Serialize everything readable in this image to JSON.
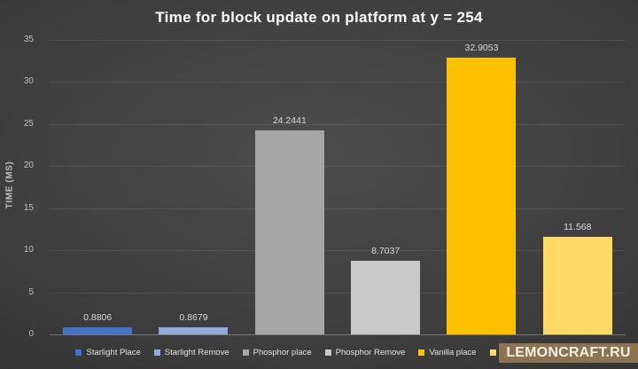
{
  "title": "Time for block update on platform at y = 254",
  "axis": {
    "ylabel": "TIME (MS)"
  },
  "watermark": {
    "text": "LEMONCRAFT.RU",
    "bg": "#8B7451",
    "fg": "#F5EFE0"
  },
  "chart_data": {
    "type": "bar",
    "title": "Time for block update on platform at y = 254",
    "xlabel": "",
    "ylabel": "TIME (MS)",
    "ylim": [
      0,
      35
    ],
    "yticks": [
      0,
      5,
      10,
      15,
      20,
      25,
      30,
      35
    ],
    "grid": true,
    "legend_position": "bottom",
    "categories": [
      "Starlight Place",
      "Starlight Remove",
      "Phosphor place",
      "Phosphor Remove",
      "Vanilla place",
      ""
    ],
    "values": [
      0.8806,
      0.8679,
      24.2441,
      8.7037,
      32.9053,
      11.568
    ],
    "data_labels": [
      "0.8806",
      "0.8679",
      "24.2441",
      "8.7037",
      "32.9053",
      "11.568"
    ],
    "bar_colors": [
      "#4472C4",
      "#8FAADC",
      "#A6A6A6",
      "#C9C9C9",
      "#FFC000",
      "#FFD966"
    ],
    "legend": [
      {
        "label": "Starlight Place",
        "color": "#4472C4",
        "occluded": false
      },
      {
        "label": "Starlight Remove",
        "color": "#8FAADC",
        "occluded": false
      },
      {
        "label": "Phosphor place",
        "color": "#A6A6A6",
        "occluded": false
      },
      {
        "label": "Phosphor Remove",
        "color": "#C9C9C9",
        "occluded": false
      },
      {
        "label": "Vanilla place",
        "color": "#FFC000",
        "occluded": false
      },
      {
        "label": "",
        "color": "#FFD966",
        "occluded": true
      }
    ]
  }
}
